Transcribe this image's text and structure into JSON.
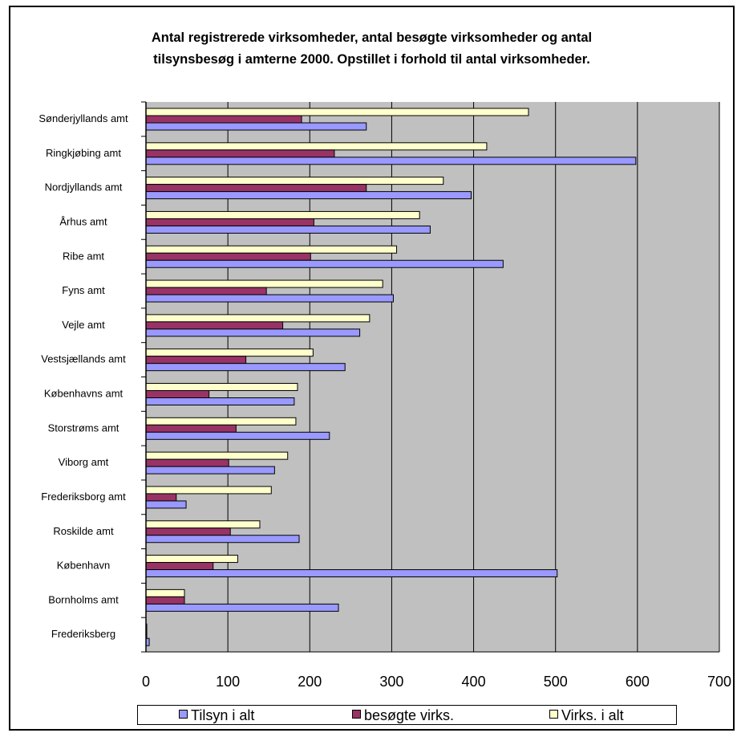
{
  "chart_data": {
    "type": "bar",
    "orientation": "horizontal",
    "title": "Antal registrerede virksomheder, antal besøgte virksomheder og antal tilsynsbesøg i amterne 2000. Opstillet i forhold til antal virksomheder.",
    "title_lines": [
      "Antal registrerede virksomheder, antal besøgte virksomheder og antal",
      "tilsynsbesøg i amterne 2000. Opstillet i forhold til antal virksomheder."
    ],
    "categories": [
      "Sønderjyllands amt",
      "Ringkjøbing amt",
      "Nordjyllands amt",
      "Århus amt",
      "Ribe amt",
      "Fyns amt",
      "Vejle amt",
      "Vestsjællands amt",
      "Københavns amt",
      "Storstrøms amt",
      "Viborg amt",
      "Frederiksborg amt",
      "Roskilde amt",
      "København",
      "Bornholms amt",
      "Frederiksberg"
    ],
    "series": [
      {
        "name": "Virks. i alt",
        "color": "#ffffcc",
        "values": [
          467,
          416,
          363,
          334,
          306,
          289,
          273,
          204,
          185,
          183,
          173,
          153,
          139,
          112,
          47,
          1
        ]
      },
      {
        "name": "besøgte virks.",
        "color": "#993366",
        "values": [
          190,
          230,
          269,
          205,
          201,
          147,
          167,
          122,
          77,
          110,
          101,
          37,
          103,
          82,
          47,
          1
        ]
      },
      {
        "name": "Tilsyn i alt",
        "color": "#9999ff",
        "values": [
          269,
          598,
          397,
          347,
          436,
          302,
          261,
          243,
          181,
          224,
          157,
          49,
          187,
          502,
          235,
          4
        ]
      }
    ],
    "legend_order": [
      "Tilsyn i alt",
      "besøgte virks.",
      "Virks. i alt"
    ],
    "xlim": [
      0,
      700
    ],
    "xticks": [
      0,
      100,
      200,
      300,
      400,
      500,
      600,
      700
    ],
    "xlabel": "",
    "ylabel": "",
    "grid": "vertical",
    "plot_background": "#c0c0c0",
    "legend_position": "bottom"
  }
}
